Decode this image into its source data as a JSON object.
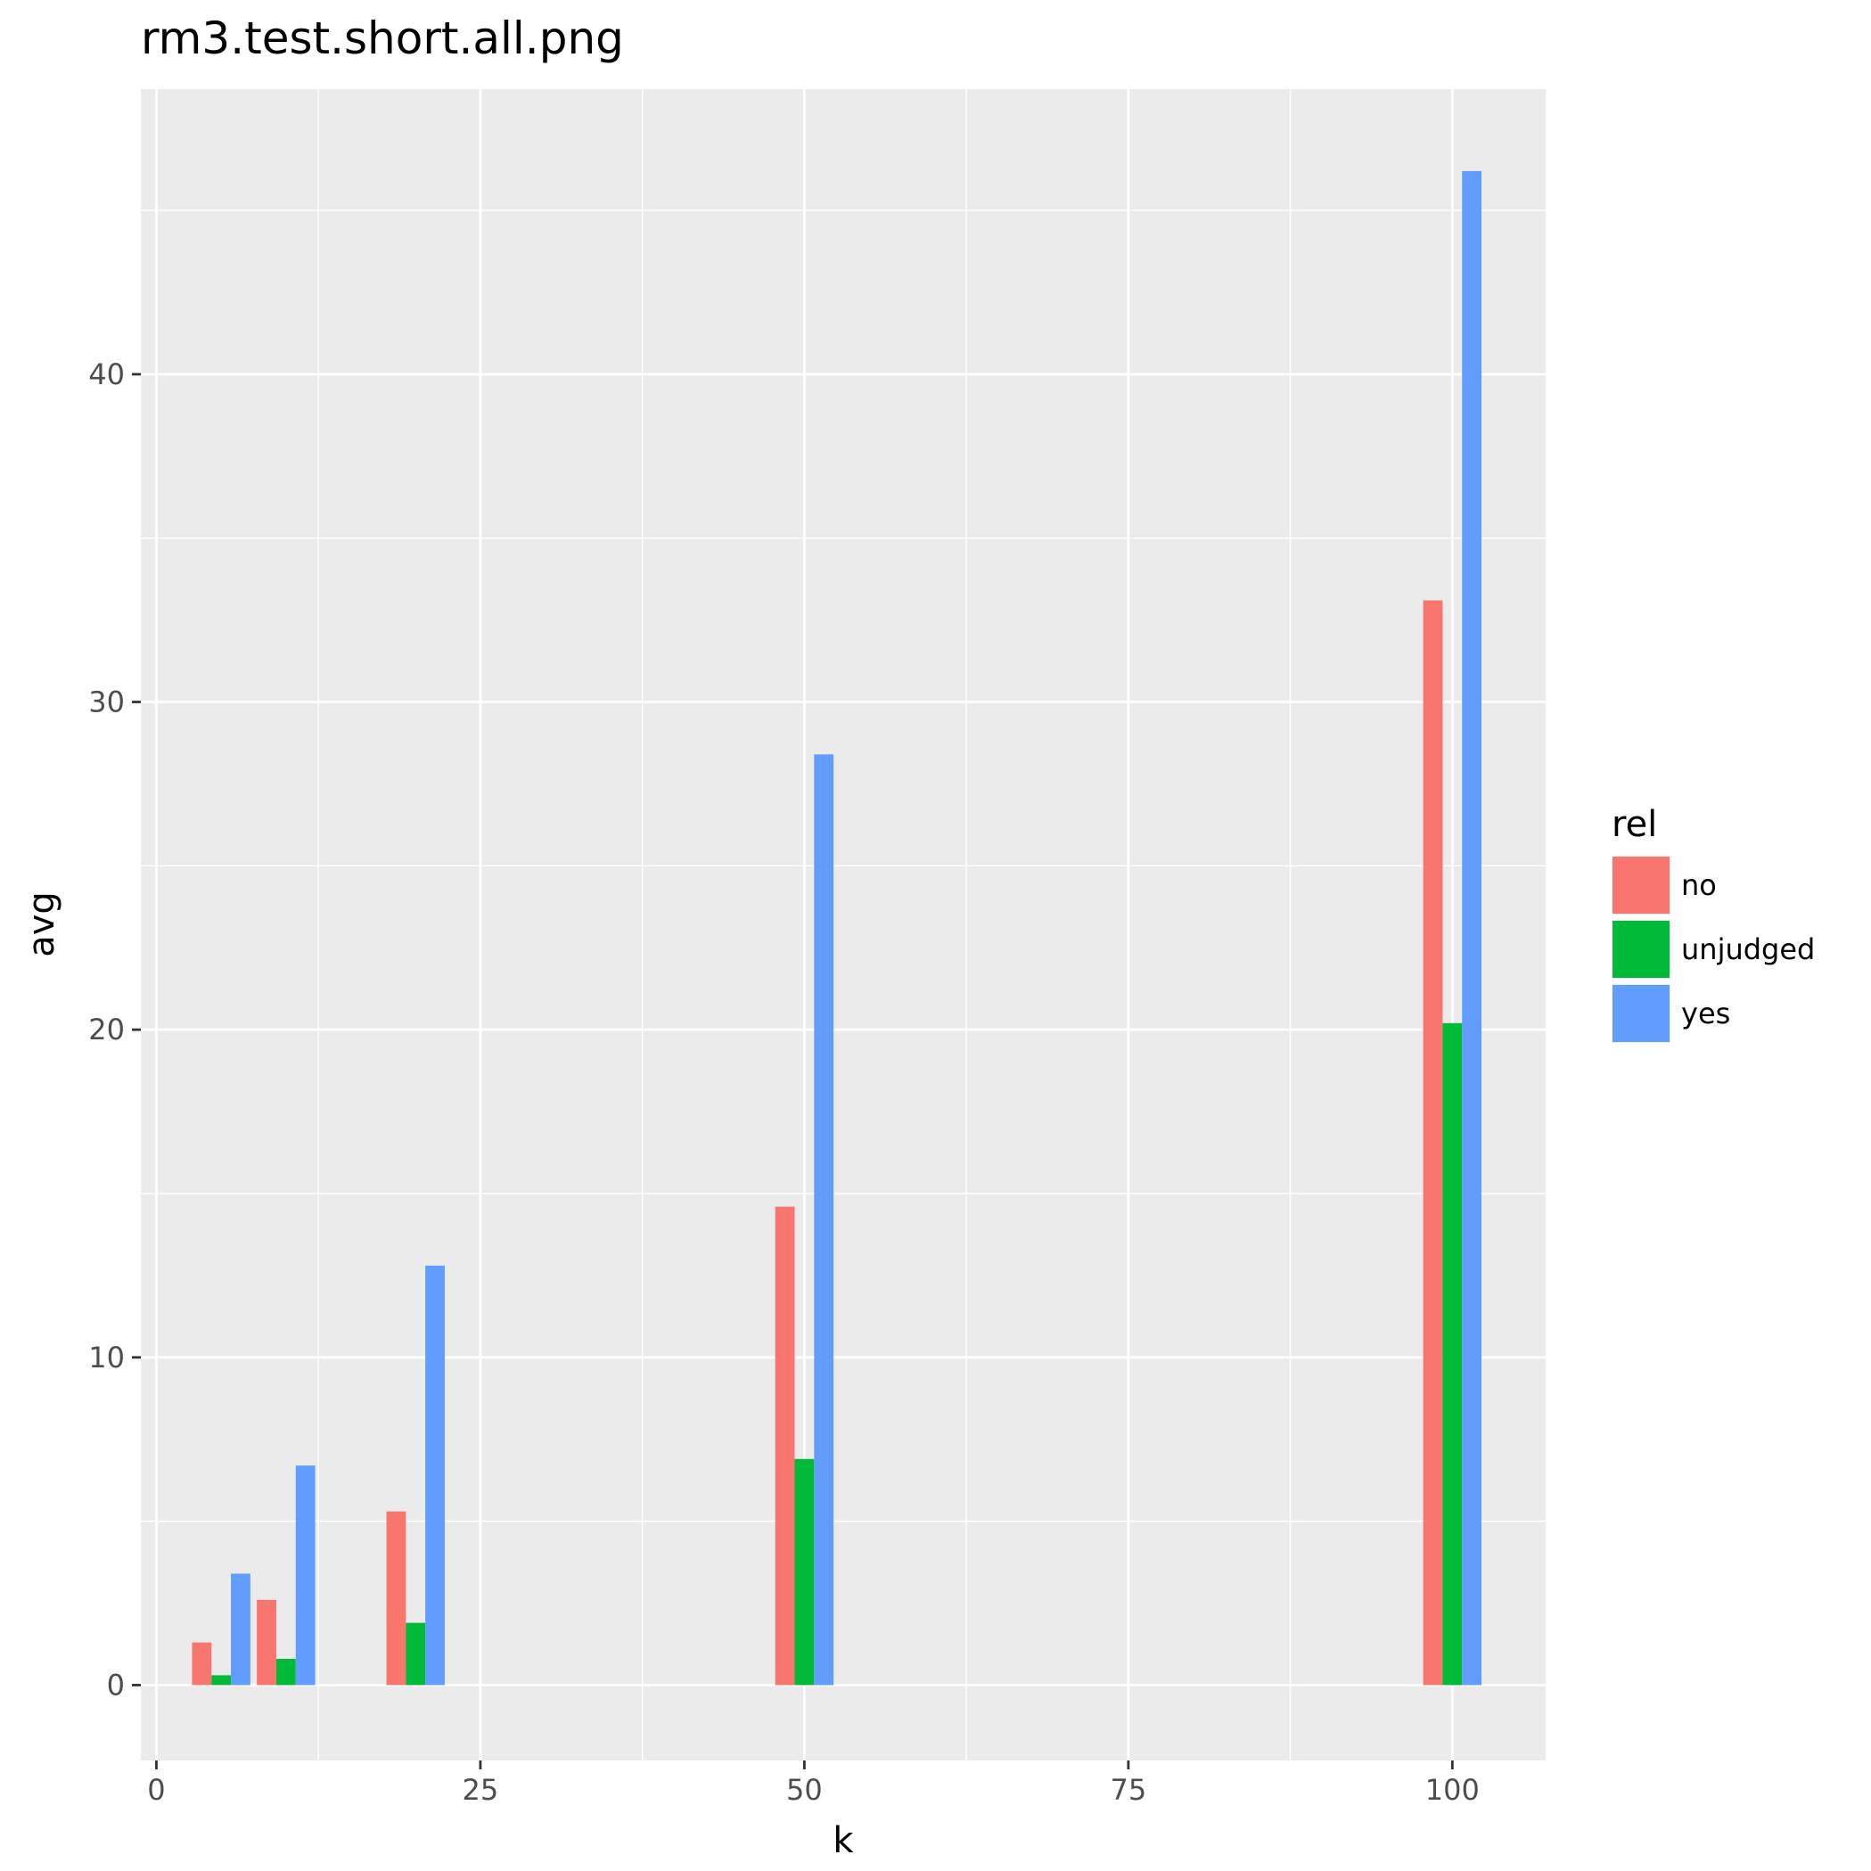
{
  "chart_data": {
    "type": "bar",
    "title": "rm3.test.short.all.png",
    "xlabel": "k",
    "ylabel": "avg",
    "xlim": [
      -1.2,
      107.2
    ],
    "ylim": [
      -2.3,
      48.7
    ],
    "x_ticks": [
      0,
      25,
      50,
      75,
      100
    ],
    "y_ticks": [
      0,
      10,
      20,
      30,
      40
    ],
    "grid": true,
    "legend": {
      "title": "rel",
      "position": "right"
    },
    "x": [
      5,
      10,
      20,
      50,
      100
    ],
    "series": [
      {
        "name": "no",
        "color": "#F8766D",
        "values": [
          1.3,
          2.6,
          5.3,
          14.6,
          33.1
        ]
      },
      {
        "name": "unjudged",
        "color": "#00BA38",
        "values": [
          0.3,
          0.8,
          1.9,
          6.9,
          20.2
        ]
      },
      {
        "name": "yes",
        "color": "#619CFF",
        "values": [
          3.4,
          6.7,
          12.8,
          28.4,
          46.2
        ]
      }
    ]
  }
}
